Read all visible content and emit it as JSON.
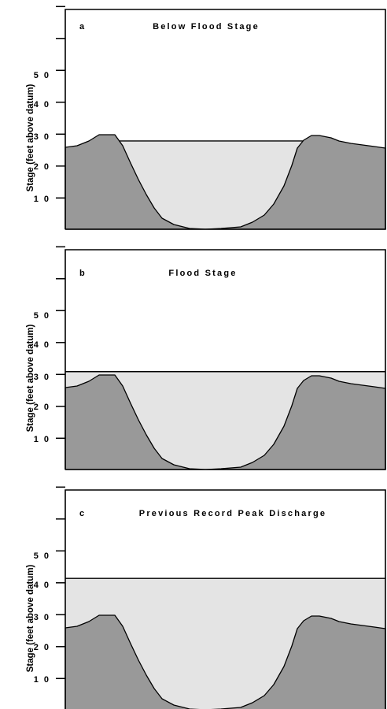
{
  "colors": {
    "ground": "#999999",
    "water": "#e4e4e4",
    "line": "#000000"
  },
  "chart_data": [
    {
      "type": "diagram",
      "panel_letter": "a",
      "title": "Below Flood Stage",
      "ylabel": "Stage (feet above datum)",
      "y_tick_labels": [
        "5 0",
        "4 0",
        "3 0",
        "2 0",
        "1 0"
      ],
      "y_ticks": [
        50,
        40,
        30,
        20,
        10
      ],
      "ylim": [
        0,
        70
      ],
      "water_stage": 28
    },
    {
      "type": "diagram",
      "panel_letter": "b",
      "title": "Flood Stage",
      "ylabel": "Stage (feet above datum)",
      "y_tick_labels": [
        "5 0",
        "4 0",
        "3 0",
        "2 0",
        "1 0"
      ],
      "y_ticks": [
        50,
        40,
        30,
        20,
        10
      ],
      "ylim": [
        0,
        70
      ],
      "water_stage": 31
    },
    {
      "type": "diagram",
      "panel_letter": "c",
      "title": "Previous Record Peak Discharge",
      "ylabel": "Stage (feet above datum)",
      "y_tick_labels": [
        "5 0",
        "4 0",
        "3 0",
        "2 0",
        "1 0"
      ],
      "y_ticks": [
        50,
        40,
        30,
        20,
        10
      ],
      "ylim": [
        0,
        70
      ],
      "water_stage": 41.5
    }
  ]
}
